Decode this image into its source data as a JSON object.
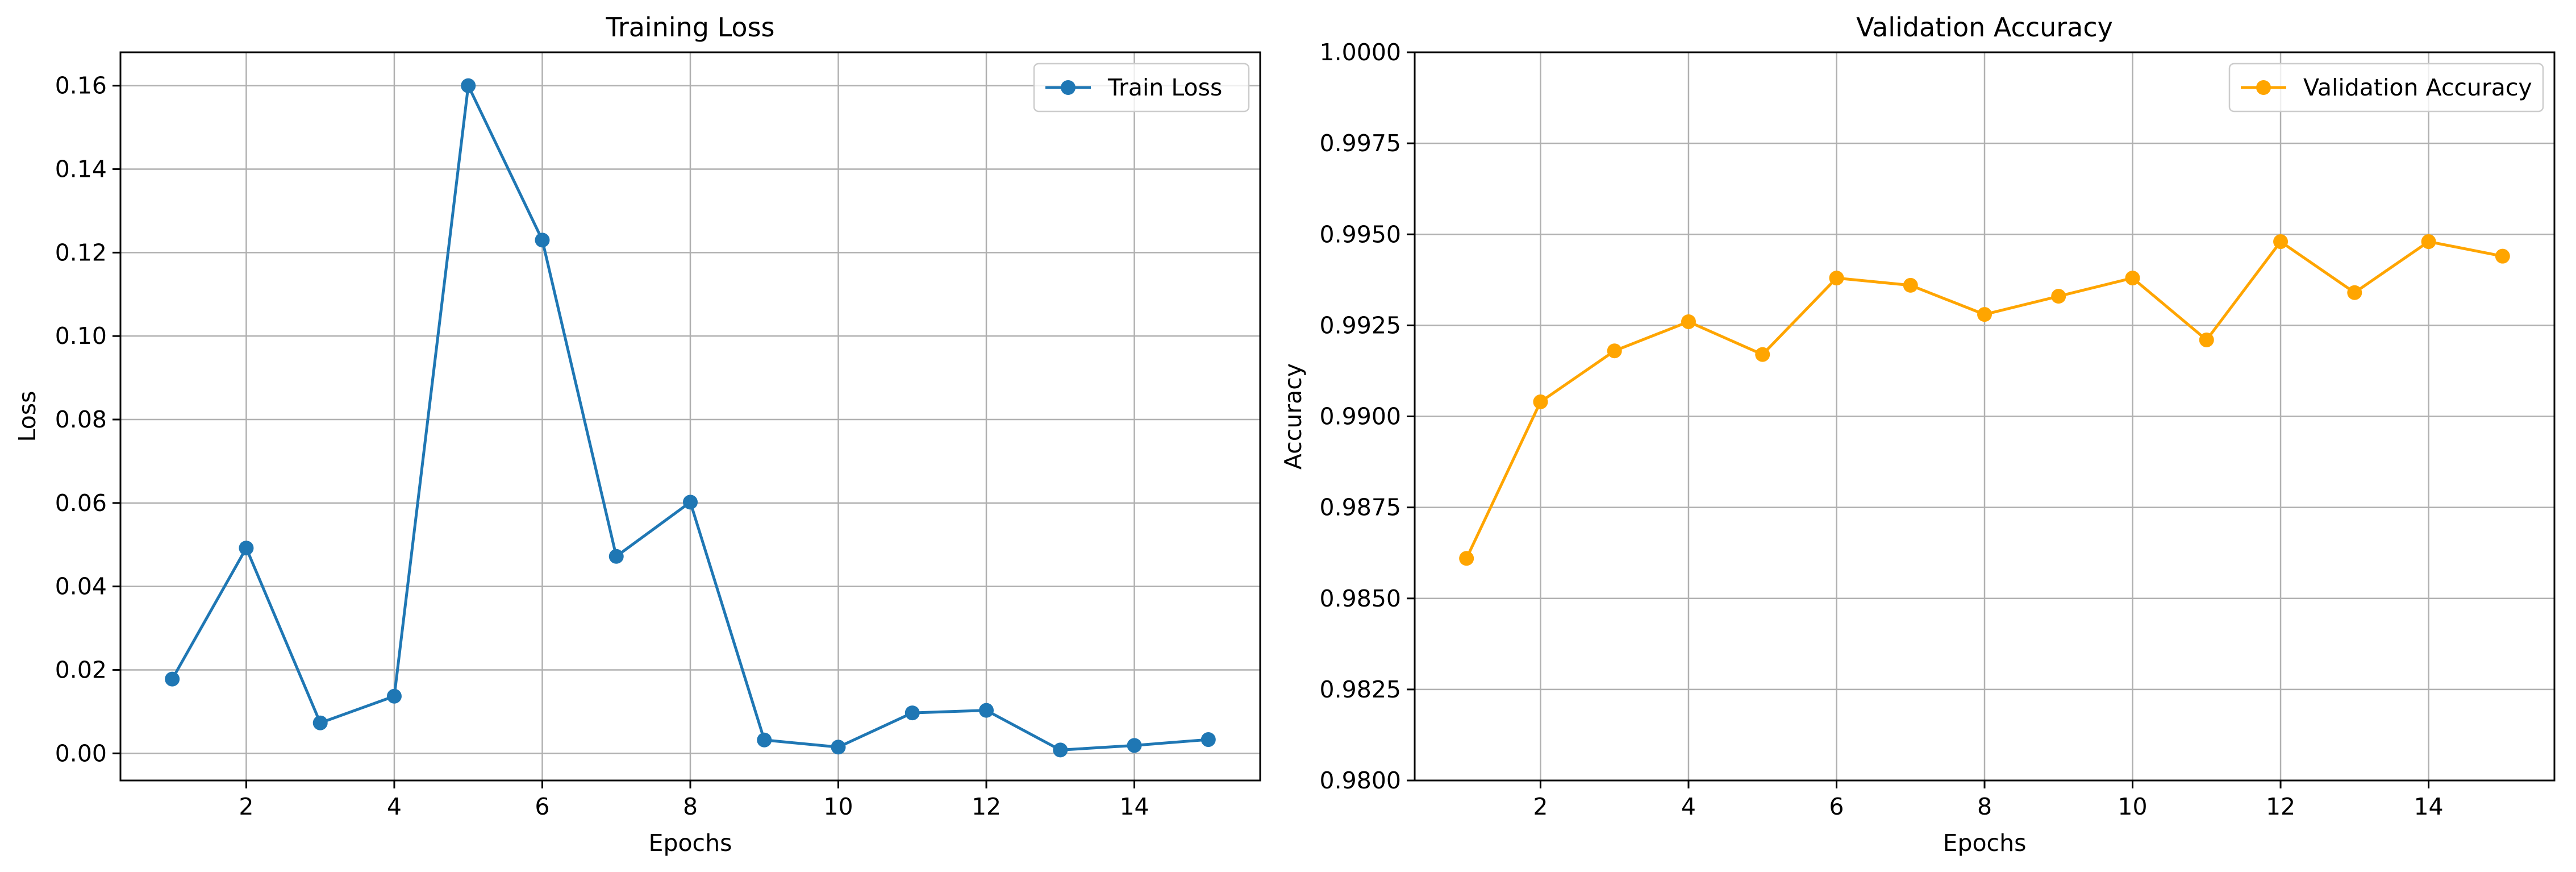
{
  "chart_data": [
    {
      "type": "line",
      "title": "Training Loss",
      "xlabel": "Epochs",
      "ylabel": "Loss",
      "xlim": [
        0.3,
        15.7
      ],
      "ylim": [
        -0.0065,
        0.168
      ],
      "xticks": [
        2,
        4,
        6,
        8,
        10,
        12,
        14
      ],
      "xtick_labels": [
        "2",
        "4",
        "6",
        "8",
        "10",
        "12",
        "14"
      ],
      "yticks": [
        0,
        0.02,
        0.04,
        0.06,
        0.08,
        0.1,
        0.12,
        0.14,
        0.16
      ],
      "ytick_labels": [
        "0.00",
        "0.02",
        "0.04",
        "0.06",
        "0.08",
        "0.10",
        "0.12",
        "0.14",
        "0.16"
      ],
      "grid": true,
      "legend_position": "top-right",
      "series": [
        {
          "name": "Train Loss",
          "color": "#1f77b4",
          "marker": "circle",
          "x": [
            1,
            2,
            3,
            4,
            5,
            6,
            7,
            8,
            9,
            10,
            11,
            12,
            13,
            14,
            15
          ],
          "y": [
            0.0178,
            0.0492,
            0.0073,
            0.0137,
            0.16,
            0.123,
            0.0472,
            0.0602,
            0.0032,
            0.0015,
            0.0097,
            0.0103,
            0.0008,
            0.0019,
            0.0033
          ]
        }
      ]
    },
    {
      "type": "line",
      "title": "Validation Accuracy",
      "xlabel": "Epochs",
      "ylabel": "Accuracy",
      "xlim": [
        0.3,
        15.7
      ],
      "ylim": [
        0.98,
        1.0
      ],
      "xticks": [
        2,
        4,
        6,
        8,
        10,
        12,
        14
      ],
      "xtick_labels": [
        "2",
        "4",
        "6",
        "8",
        "10",
        "12",
        "14"
      ],
      "yticks": [
        0.98,
        0.9825,
        0.985,
        0.9875,
        0.99,
        0.9925,
        0.995,
        0.9975,
        1.0
      ],
      "ytick_labels": [
        "0.9800",
        "0.9825",
        "0.9850",
        "0.9875",
        "0.9900",
        "0.9925",
        "0.9950",
        "0.9975",
        "1.0000"
      ],
      "grid": true,
      "legend_position": "top-right",
      "series": [
        {
          "name": "Validation Accuracy",
          "color": "#ffa500",
          "marker": "circle",
          "x": [
            1,
            2,
            3,
            4,
            5,
            6,
            7,
            8,
            9,
            10,
            11,
            12,
            13,
            14,
            15
          ],
          "y": [
            0.9861,
            0.9904,
            0.9918,
            0.9926,
            0.9917,
            0.9938,
            0.9936,
            0.9928,
            0.9933,
            0.9938,
            0.9921,
            0.9948,
            0.9934,
            0.9948,
            0.9944
          ]
        }
      ]
    }
  ]
}
